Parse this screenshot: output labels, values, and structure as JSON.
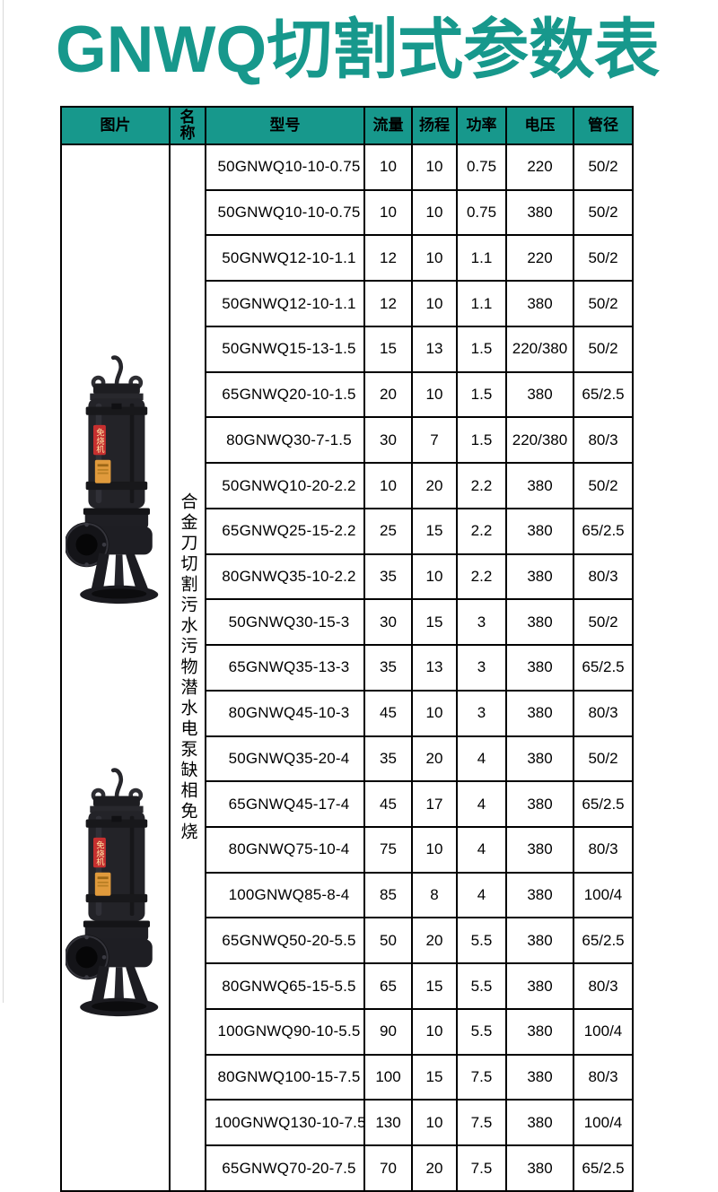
{
  "page": {
    "title": "GNWQ切割式参数表"
  },
  "colors": {
    "accent_teal": "#17988C",
    "table_border": "#000000",
    "pump_label_red": "#C62F2F",
    "pump_label_orange": "#E09A3C"
  },
  "table": {
    "headers": [
      "图片",
      "名称",
      "型号",
      "流量",
      "扬程",
      "功率",
      "电压",
      "管径"
    ],
    "product_name": "合金刀切割污水污物潜水电泵缺相免烧",
    "pump_image_label": "免烧机",
    "rows": [
      {
        "model": "50GNWQ10-10-0.75",
        "flow": "10",
        "head": "10",
        "power": "0.75",
        "voltage": "220",
        "pipe": "50/2"
      },
      {
        "model": "50GNWQ10-10-0.75",
        "flow": "10",
        "head": "10",
        "power": "0.75",
        "voltage": "380",
        "pipe": "50/2"
      },
      {
        "model": "50GNWQ12-10-1.1",
        "flow": "12",
        "head": "10",
        "power": "1.1",
        "voltage": "220",
        "pipe": "50/2"
      },
      {
        "model": "50GNWQ12-10-1.1",
        "flow": "12",
        "head": "10",
        "power": "1.1",
        "voltage": "380",
        "pipe": "50/2"
      },
      {
        "model": "50GNWQ15-13-1.5",
        "flow": "15",
        "head": "13",
        "power": "1.5",
        "voltage": "220/380",
        "pipe": "50/2"
      },
      {
        "model": "65GNWQ20-10-1.5",
        "flow": "20",
        "head": "10",
        "power": "1.5",
        "voltage": "380",
        "pipe": "65/2.5"
      },
      {
        "model": "80GNWQ30-7-1.5",
        "flow": "30",
        "head": "7",
        "power": "1.5",
        "voltage": "220/380",
        "pipe": "80/3"
      },
      {
        "model": "50GNWQ10-20-2.2",
        "flow": "10",
        "head": "20",
        "power": "2.2",
        "voltage": "380",
        "pipe": "50/2"
      },
      {
        "model": "65GNWQ25-15-2.2",
        "flow": "25",
        "head": "15",
        "power": "2.2",
        "voltage": "380",
        "pipe": "65/2.5"
      },
      {
        "model": "80GNWQ35-10-2.2",
        "flow": "35",
        "head": "10",
        "power": "2.2",
        "voltage": "380",
        "pipe": "80/3"
      },
      {
        "model": "50GNWQ30-15-3",
        "flow": "30",
        "head": "15",
        "power": "3",
        "voltage": "380",
        "pipe": "50/2"
      },
      {
        "model": "65GNWQ35-13-3",
        "flow": "35",
        "head": "13",
        "power": "3",
        "voltage": "380",
        "pipe": "65/2.5"
      },
      {
        "model": "80GNWQ45-10-3",
        "flow": "45",
        "head": "10",
        "power": "3",
        "voltage": "380",
        "pipe": "80/3"
      },
      {
        "model": "50GNWQ35-20-4",
        "flow": "35",
        "head": "20",
        "power": "4",
        "voltage": "380",
        "pipe": "50/2"
      },
      {
        "model": "65GNWQ45-17-4",
        "flow": "45",
        "head": "17",
        "power": "4",
        "voltage": "380",
        "pipe": "65/2.5"
      },
      {
        "model": "80GNWQ75-10-4",
        "flow": "75",
        "head": "10",
        "power": "4",
        "voltage": "380",
        "pipe": "80/3"
      },
      {
        "model": "100GNWQ85-8-4",
        "flow": "85",
        "head": "8",
        "power": "4",
        "voltage": "380",
        "pipe": "100/4"
      },
      {
        "model": "65GNWQ50-20-5.5",
        "flow": "50",
        "head": "20",
        "power": "5.5",
        "voltage": "380",
        "pipe": "65/2.5"
      },
      {
        "model": "80GNWQ65-15-5.5",
        "flow": "65",
        "head": "15",
        "power": "5.5",
        "voltage": "380",
        "pipe": "80/3"
      },
      {
        "model": "100GNWQ90-10-5.5",
        "flow": "90",
        "head": "10",
        "power": "5.5",
        "voltage": "380",
        "pipe": "100/4"
      },
      {
        "model": "80GNWQ100-15-7.5",
        "flow": "100",
        "head": "15",
        "power": "7.5",
        "voltage": "380",
        "pipe": "80/3"
      },
      {
        "model": "100GNWQ130-10-7.5",
        "flow": "130",
        "head": "10",
        "power": "7.5",
        "voltage": "380",
        "pipe": "100/4"
      },
      {
        "model": "65GNWQ70-20-7.5",
        "flow": "70",
        "head": "20",
        "power": "7.5",
        "voltage": "380",
        "pipe": "65/2.5"
      }
    ]
  }
}
